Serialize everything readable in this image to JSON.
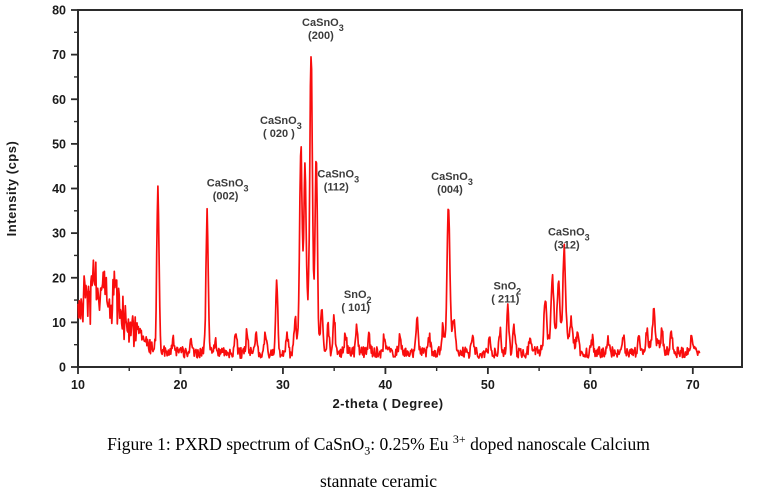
{
  "chart_data": {
    "type": "line",
    "title": "",
    "xlabel": "2-theta ( Degree)",
    "ylabel": "Intensity (cps)",
    "xlim": [
      10,
      74.8
    ],
    "ylim": [
      0,
      80
    ],
    "grid": false,
    "legend": "none",
    "x_major_ticks": [
      10,
      20,
      30,
      40,
      50,
      60,
      70
    ],
    "x_minor_ticks": [
      15,
      25,
      35,
      45,
      55,
      65
    ],
    "y_major_ticks": [
      0,
      10,
      20,
      30,
      40,
      50,
      60,
      70,
      80
    ],
    "y_minor_ticks": [
      5,
      15,
      25,
      35,
      45,
      55,
      65,
      75
    ],
    "line_color": "#f90d0d",
    "axis_color": "#2b2b2b",
    "annotation_color": "#3c3c3c",
    "peaks_labeled": [
      {
        "phase": "CaSnO3",
        "hkl": "(002)",
        "two_theta": 22.6,
        "intensity": 35
      },
      {
        "phase": "CaSnO3",
        "hkl": "( 020 )",
        "two_theta": 31.8,
        "intensity": 50
      },
      {
        "phase": "CaSnO3",
        "hkl": "(200)",
        "two_theta": 32.8,
        "intensity": 71
      },
      {
        "phase": "CaSnO3",
        "hkl": "(112)",
        "two_theta": 33.3,
        "intensity": 47
      },
      {
        "phase": "SnO2",
        "hkl": "( 101)",
        "two_theta": 37.2,
        "intensity": 8
      },
      {
        "phase": "CaSnO3",
        "hkl": "(004)",
        "two_theta": 46.2,
        "intensity": 35
      },
      {
        "phase": "SnO2",
        "hkl": "( 211)",
        "two_theta": 52.0,
        "intensity": 13
      },
      {
        "phase": "CaSnO3",
        "hkl": "(312)",
        "two_theta": 57.4,
        "intensity": 26
      }
    ],
    "annotations": [
      {
        "formula": "CaSnO",
        "sub": "3",
        "hkl": "(002)",
        "x": 24.6,
        "y": 37.5
      },
      {
        "formula": "CaSnO",
        "sub": "3",
        "hkl": "( 020 )",
        "x": 29.8,
        "y": 51.5
      },
      {
        "formula": "CaSnO",
        "sub": "3",
        "hkl": "(200)",
        "x": 33.9,
        "y": 73.5
      },
      {
        "formula": "CaSnO",
        "sub": "3",
        "hkl": "(112)",
        "x": 35.4,
        "y": 39.5
      },
      {
        "formula": "SnO",
        "sub": "2",
        "hkl": "( 101)",
        "x": 37.3,
        "y": 12.5
      },
      {
        "formula": "CaSnO",
        "sub": "3",
        "hkl": "(004)",
        "x": 46.5,
        "y": 39
      },
      {
        "formula": "SnO",
        "sub": "2",
        "hkl": "( 211)",
        "x": 51.9,
        "y": 14.5
      },
      {
        "formula": "CaSnO",
        "sub": "3",
        "hkl": "(312)",
        "x": 57.9,
        "y": 26.5
      }
    ],
    "trace": {
      "seed": 42,
      "x_start": 10,
      "x_end": 70.7,
      "step": 0.06,
      "baseline": 2,
      "noise_amp": 2.5,
      "hump": {
        "center": 11.9,
        "amp": 14,
        "sigma": 2.3,
        "noise": 5
      },
      "peaks": [
        [
          10.7,
          6,
          0.15
        ],
        [
          11.5,
          5,
          0.15
        ],
        [
          12.6,
          5,
          0.15
        ],
        [
          13.6,
          6,
          0.15
        ],
        [
          17.8,
          36,
          0.11
        ],
        [
          19.3,
          3,
          0.1
        ],
        [
          21.0,
          3,
          0.1
        ],
        [
          22.6,
          31,
          0.11
        ],
        [
          23.4,
          3,
          0.1
        ],
        [
          25.4,
          4.5,
          0.1
        ],
        [
          26.5,
          5,
          0.1
        ],
        [
          27.4,
          3.5,
          0.1
        ],
        [
          28.3,
          4,
          0.1
        ],
        [
          29.4,
          16,
          0.1
        ],
        [
          30.4,
          4.5,
          0.1
        ],
        [
          31.2,
          7,
          0.12
        ],
        [
          31.75,
          44,
          0.12
        ],
        [
          32.15,
          35,
          0.11
        ],
        [
          32.6,
          10,
          0.5
        ],
        [
          32.75,
          58,
          0.12
        ],
        [
          33.25,
          40,
          0.11
        ],
        [
          33.8,
          9,
          0.12
        ],
        [
          34.4,
          6,
          0.1
        ],
        [
          35.0,
          8,
          0.1
        ],
        [
          36.1,
          4.5,
          0.1
        ],
        [
          37.2,
          5.5,
          0.1
        ],
        [
          38.4,
          3.5,
          0.1
        ],
        [
          39.9,
          4,
          0.1
        ],
        [
          41.4,
          3.5,
          0.1
        ],
        [
          43.1,
          8,
          0.1
        ],
        [
          44.3,
          3.5,
          0.1
        ],
        [
          45.6,
          4.5,
          0.1
        ],
        [
          46.15,
          30,
          0.13
        ],
        [
          46.2,
          3.5,
          0.4
        ],
        [
          46.7,
          6,
          0.1
        ],
        [
          48.5,
          4.5,
          0.1
        ],
        [
          50.2,
          3.5,
          0.1
        ],
        [
          51.2,
          5.5,
          0.1
        ],
        [
          51.95,
          10,
          0.1
        ],
        [
          52.55,
          6,
          0.1
        ],
        [
          54.1,
          3,
          0.1
        ],
        [
          55.6,
          11,
          0.12
        ],
        [
          56.3,
          13,
          0.12
        ],
        [
          56.9,
          11,
          0.12
        ],
        [
          57.0,
          5,
          0.9
        ],
        [
          57.45,
          19,
          0.12
        ],
        [
          58.15,
          5,
          0.12
        ],
        [
          58.75,
          3.5,
          0.1
        ],
        [
          60.2,
          3,
          0.1
        ],
        [
          61.7,
          3.5,
          0.1
        ],
        [
          63.2,
          4,
          0.1
        ],
        [
          64.7,
          3.5,
          0.1
        ],
        [
          65.5,
          4.5,
          0.1
        ],
        [
          66.2,
          8,
          0.1
        ],
        [
          66.3,
          2.5,
          0.5
        ],
        [
          67.0,
          4,
          0.1
        ],
        [
          67.9,
          4.5,
          0.1
        ],
        [
          69.9,
          4,
          0.12
        ]
      ]
    }
  },
  "caption": {
    "lines": [
      [
        {
          "t": "Figure 1: PXRD spectrum of CaSnO"
        },
        {
          "t": "3",
          "v": "sub"
        },
        {
          "t": ": 0.25% Eu "
        },
        {
          "t": "3+",
          "v": "sup"
        },
        {
          "t": " doped nanoscale Calcium"
        }
      ],
      [
        {
          "t": "stannate ceramic"
        }
      ]
    ]
  }
}
